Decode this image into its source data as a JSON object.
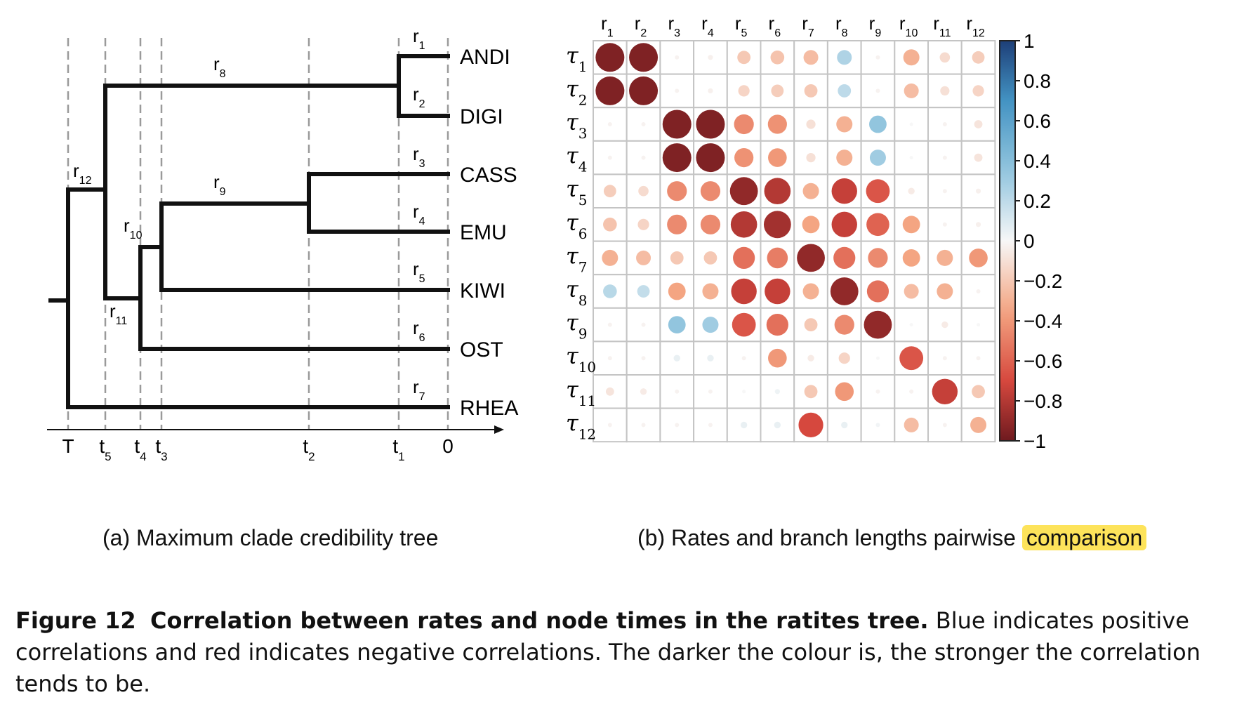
{
  "panel_a": {
    "caption": "(a) Maximum clade credibility tree",
    "taxa": [
      "ANDI",
      "DIGI",
      "CASS",
      "EMU",
      "KIWI",
      "OST",
      "RHEA"
    ],
    "node_times": [
      "T",
      "t",
      "t",
      "t",
      "t",
      "t",
      "0"
    ],
    "node_time_subscripts": [
      "",
      "5",
      "4",
      "3",
      "2",
      "1",
      ""
    ],
    "branch_rate_letter": "r",
    "branch_rates": [
      "1",
      "2",
      "3",
      "4",
      "5",
      "6",
      "7",
      "8",
      "9",
      "10",
      "11",
      "12"
    ]
  },
  "panel_b": {
    "caption_before": "(b) Rates and branch lengths pairwise ",
    "caption_highlight": "comparison",
    "highlight_color": "#fde35a"
  },
  "caption": {
    "label": "Figure 12",
    "title": "Correlation between rates and node times in the ratites tree.",
    "text": "Blue indicates positive correlations and red indicates negative correlations. The darker the colour is, the stronger the correlation tends to be."
  },
  "chart_data": {
    "type": "heatmap",
    "row_letter": "τ",
    "col_letter": "r",
    "rows": [
      "1",
      "2",
      "3",
      "4",
      "5",
      "6",
      "7",
      "8",
      "9",
      "10",
      "11",
      "12"
    ],
    "cols": [
      "1",
      "2",
      "3",
      "4",
      "5",
      "6",
      "7",
      "8",
      "9",
      "10",
      "11",
      "12"
    ],
    "values": [
      [
        -0.95,
        -0.95,
        -0.02,
        -0.03,
        -0.2,
        -0.22,
        -0.25,
        0.25,
        -0.02,
        -0.3,
        -0.12,
        -0.18
      ],
      [
        -0.95,
        -0.95,
        -0.02,
        -0.03,
        -0.15,
        -0.18,
        -0.2,
        0.2,
        -0.02,
        -0.25,
        -0.1,
        -0.15
      ],
      [
        -0.02,
        -0.02,
        -0.95,
        -0.95,
        -0.45,
        -0.42,
        -0.1,
        -0.3,
        0.35,
        0.0,
        -0.02,
        -0.08
      ],
      [
        -0.02,
        -0.02,
        -0.95,
        -0.95,
        -0.42,
        -0.4,
        -0.1,
        -0.3,
        0.3,
        0.0,
        -0.02,
        -0.08
      ],
      [
        -0.18,
        -0.12,
        -0.45,
        -0.45,
        -0.9,
        -0.8,
        -0.3,
        -0.75,
        -0.65,
        -0.05,
        -0.02,
        -0.03
      ],
      [
        -0.22,
        -0.15,
        -0.45,
        -0.45,
        -0.8,
        -0.85,
        -0.35,
        -0.75,
        -0.6,
        -0.35,
        -0.02,
        -0.03
      ],
      [
        -0.3,
        -0.25,
        -0.2,
        -0.2,
        -0.55,
        -0.5,
        -0.9,
        -0.55,
        -0.45,
        -0.35,
        -0.3,
        -0.4
      ],
      [
        0.22,
        0.18,
        -0.35,
        -0.3,
        -0.75,
        -0.75,
        -0.3,
        -0.9,
        -0.55,
        -0.25,
        -0.3,
        -0.02
      ],
      [
        -0.02,
        -0.02,
        0.35,
        0.3,
        -0.65,
        -0.55,
        -0.2,
        -0.45,
        -0.9,
        0.0,
        -0.05,
        0.0
      ],
      [
        -0.02,
        -0.02,
        0.05,
        0.05,
        -0.02,
        -0.4,
        -0.05,
        -0.15,
        0.0,
        -0.65,
        -0.02,
        -0.02
      ],
      [
        -0.08,
        -0.05,
        -0.02,
        -0.02,
        0.0,
        0.03,
        -0.2,
        -0.4,
        -0.02,
        -0.02,
        -0.75,
        -0.2
      ],
      [
        -0.02,
        -0.02,
        -0.02,
        -0.02,
        0.05,
        0.05,
        -0.7,
        0.05,
        0.02,
        -0.25,
        -0.02,
        -0.3
      ]
    ],
    "colorbar_ticks": [
      "1",
      "0.8",
      "0.6",
      "0.4",
      "0.2",
      "0",
      "−0.2",
      "−0.4",
      "−0.6",
      "−0.8",
      "−1"
    ],
    "color_range": [
      -1,
      1
    ],
    "positive_color": "#1d3f78",
    "negative_color": "#6e1a1f"
  }
}
